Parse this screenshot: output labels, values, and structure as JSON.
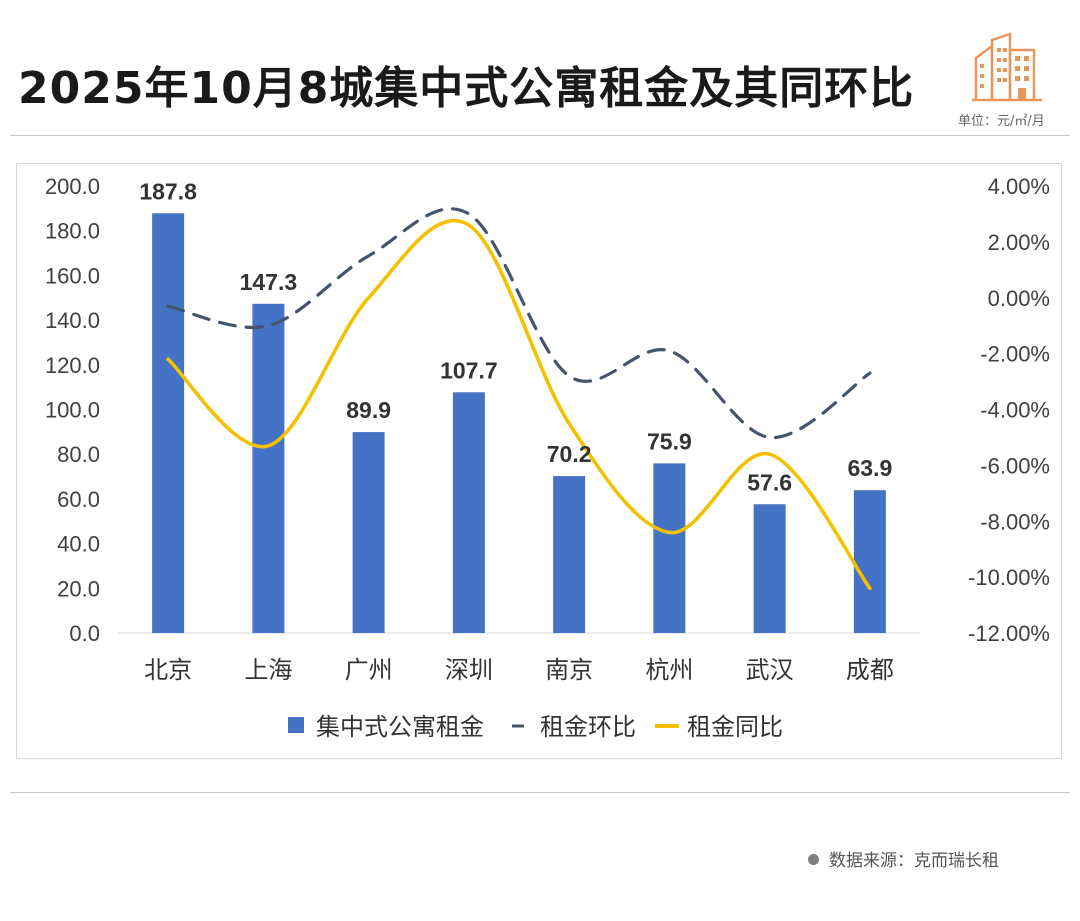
{
  "header": {
    "title": "2025年10月8城集中式公寓租金及其同环比",
    "unit": "单位：元/㎡/月"
  },
  "footer": {
    "source": "数据来源：克而瑞长租"
  },
  "colors": {
    "bar": "#4472c4",
    "mom_line": "#44546a",
    "yoy_line": "#f5c000",
    "logo": "#e8955a"
  },
  "chart_data": {
    "type": "bar",
    "categories": [
      "北京",
      "上海",
      "广州",
      "深圳",
      "南京",
      "杭州",
      "武汉",
      "成都"
    ],
    "series": [
      {
        "name": "集中式公寓租金",
        "type": "bar",
        "axis": "left",
        "values": [
          187.8,
          147.3,
          89.9,
          107.7,
          70.2,
          75.9,
          57.6,
          63.9
        ]
      },
      {
        "name": "租金环比",
        "type": "line",
        "style": "dashed",
        "axis": "right",
        "values": [
          -0.3,
          -1.0,
          1.5,
          3.0,
          -2.8,
          -1.9,
          -5.0,
          -2.7
        ]
      },
      {
        "name": "租金同比",
        "type": "line",
        "style": "solid",
        "axis": "right",
        "values": [
          -2.2,
          -5.3,
          0.0,
          2.6,
          -4.5,
          -8.4,
          -5.6,
          -10.4
        ]
      }
    ],
    "y_left": {
      "range": [
        0,
        200
      ],
      "ticks": [
        "0.0",
        "20.0",
        "40.0",
        "60.0",
        "80.0",
        "100.0",
        "120.0",
        "140.0",
        "160.0",
        "180.0",
        "200.0"
      ]
    },
    "y_right": {
      "range": [
        -12,
        4
      ],
      "unit": "%",
      "ticks": [
        "-12.00%",
        "-10.00%",
        "-8.00%",
        "-6.00%",
        "-4.00%",
        "-2.00%",
        "0.00%",
        "2.00%",
        "4.00%"
      ]
    },
    "data_labels": [
      "187.8",
      "147.3",
      "89.9",
      "107.7",
      "70.2",
      "75.9",
      "57.6",
      "63.9"
    ],
    "legend_position": "bottom",
    "grid": false
  }
}
